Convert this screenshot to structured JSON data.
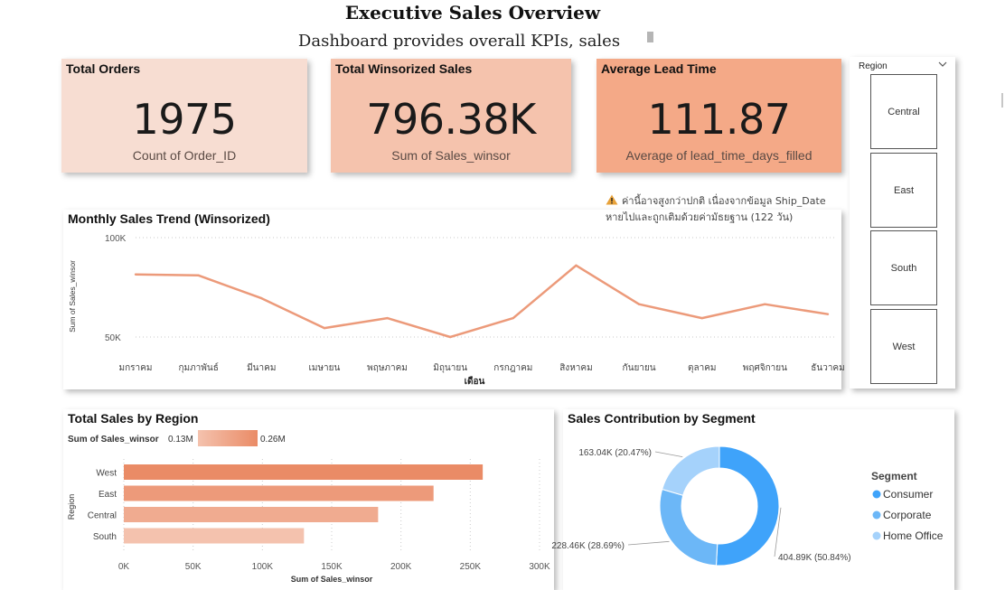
{
  "header": {
    "title": "Executive Sales Overview",
    "subtitle": "Dashboard provides overall KPIs, sales"
  },
  "kpis": [
    {
      "title": "Total Orders",
      "value": "1975",
      "label": "Count of Order_ID",
      "color": "#f7ddd2"
    },
    {
      "title": "Total Winsorized Sales",
      "value": "796.38K",
      "label": "Sum of Sales_winsor",
      "color": "#f5c3ad"
    },
    {
      "title": "Average Lead Time",
      "value": "111.87",
      "label": "Average of lead_time_days_filled",
      "color": "#f4a987"
    }
  ],
  "slicer": {
    "title": "Region",
    "options": [
      "Central",
      "East",
      "South",
      "West"
    ]
  },
  "note": {
    "line1": "ค่านี้อาจสูงกว่าปกติ เนื่องจากข้อมูล Ship_Date",
    "line2": "หายไปและถูกเติมด้วยค่ามัธยฐาน (122 วัน)"
  },
  "colors": {
    "line": "#ec9a7a",
    "bar_dark": "#ea8b66",
    "bar_light": "#f4c2ae",
    "donut_consumer": "#3fa3fa",
    "donut_corporate": "#6cb7f7",
    "donut_home": "#a5d2fb",
    "warn": "#e8a23a"
  },
  "chart_data": [
    {
      "type": "line",
      "title": "Monthly Sales Trend (Winsorized)",
      "xlabel": "เดือน",
      "ylabel": "Sum of Sales_winsor",
      "yticks": [
        "100K",
        "50K"
      ],
      "ylim": [
        50000,
        100000
      ],
      "grid": true,
      "categories": [
        "มกราคม",
        "กุมภาพันธ์",
        "มีนาคม",
        "เมษายน",
        "พฤษภาคม",
        "มิถุนายน",
        "กรกฎาคม",
        "สิงหาคม",
        "กันยายน",
        "ตุลาคม",
        "พฤศจิกายน",
        "ธันวาคม"
      ],
      "values": [
        81500,
        81000,
        69500,
        54500,
        59500,
        50000,
        59500,
        86000,
        66500,
        59500,
        66500,
        61500
      ]
    },
    {
      "type": "bar",
      "title": "Total Sales by Region",
      "xlabel": "Sum of Sales_winsor",
      "ylabel": "Region",
      "legend_title": "Sum of Sales_winsor",
      "legend_min": "0.13M",
      "legend_max": "0.26M",
      "categories": [
        "West",
        "East",
        "Central",
        "South"
      ],
      "values": [
        259000,
        223500,
        183500,
        130000
      ],
      "xticks": [
        "0K",
        "50K",
        "100K",
        "150K",
        "200K",
        "250K",
        "300K"
      ],
      "xlim": [
        0,
        300000
      ],
      "grid": true
    },
    {
      "type": "pie",
      "title": "Sales Contribution by Segment",
      "legend_title": "Segment",
      "legend_position": "right",
      "series": [
        {
          "name": "Consumer",
          "value": 404.89,
          "label": "404.89K (50.84%)"
        },
        {
          "name": "Corporate",
          "value": 228.46,
          "label": "228.46K (28.69%)"
        },
        {
          "name": "Home Office",
          "value": 163.04,
          "label": "163.04K (20.47%)"
        }
      ]
    }
  ]
}
